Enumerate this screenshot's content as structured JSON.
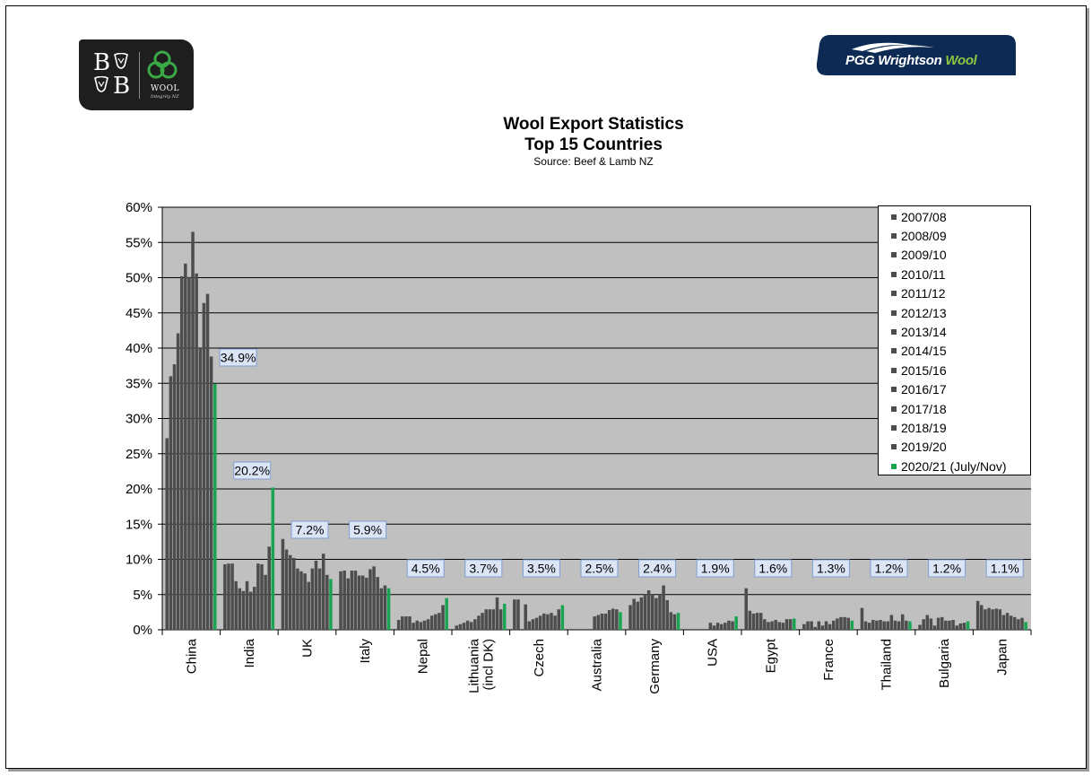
{
  "chart_data": {
    "type": "bar",
    "title": "Wool Export Statistics",
    "subtitle": "Top 15 Countries",
    "source": "Source: Beef & Lamb NZ",
    "ylim": [
      0,
      60
    ],
    "yticks": [
      "0%",
      "5%",
      "10%",
      "15%",
      "20%",
      "25%",
      "30%",
      "35%",
      "40%",
      "45%",
      "50%",
      "55%",
      "60%"
    ],
    "grid": true,
    "legend_position": "top-right",
    "categories": [
      "China",
      "India",
      "UK",
      "Italy",
      "Nepal",
      "Lithuania\n(incl DK)",
      "Czech",
      "Australia",
      "Germany",
      "USA",
      "Egypt",
      "France",
      "Thailand",
      "Bulgaria",
      "Japan"
    ],
    "series": [
      {
        "name": "2007/08",
        "color": "#4d4d4d",
        "values": [
          27.2,
          9.3,
          12.9,
          8.3,
          1.4,
          0.6,
          4.3,
          0,
          3.5,
          0,
          5.9,
          0.8,
          3.1,
          0.7,
          4.1
        ]
      },
      {
        "name": "2008/09",
        "color": "#4d4d4d",
        "values": [
          36.0,
          9.4,
          11.4,
          8.4,
          1.9,
          0.8,
          4.3,
          0,
          4.4,
          0,
          2.7,
          1.2,
          1.2,
          1.5,
          3.5
        ]
      },
      {
        "name": "2009/10",
        "color": "#4d4d4d",
        "values": [
          37.7,
          9.4,
          10.6,
          7.3,
          1.9,
          1.0,
          0,
          0,
          4.0,
          0,
          2.3,
          1.2,
          1.0,
          2.1,
          2.9
        ]
      },
      {
        "name": "2010/11",
        "color": "#4d4d4d",
        "values": [
          42.1,
          6.9,
          10.2,
          8.4,
          1.9,
          1.3,
          3.6,
          0,
          4.6,
          0,
          2.4,
          0.4,
          1.4,
          1.6,
          3.1
        ]
      },
      {
        "name": "2011/12",
        "color": "#4d4d4d",
        "values": [
          50.2,
          5.9,
          8.7,
          8.4,
          1.0,
          1.1,
          1.2,
          0,
          5.0,
          0,
          2.4,
          1.2,
          1.3,
          0.6,
          2.9
        ]
      },
      {
        "name": "2012/13",
        "color": "#4d4d4d",
        "values": [
          52.0,
          5.5,
          8.3,
          7.7,
          1.3,
          1.5,
          1.5,
          0,
          5.6,
          0,
          1.5,
          0.6,
          1.4,
          1.7,
          3.0
        ]
      },
      {
        "name": "2013/14",
        "color": "#4d4d4d",
        "values": [
          50.1,
          6.9,
          8.0,
          7.7,
          1.1,
          2.0,
          1.7,
          1.9,
          5.1,
          1.0,
          1.1,
          1.2,
          1.2,
          1.8,
          2.9
        ]
      },
      {
        "name": "2014/15",
        "color": "#4d4d4d",
        "values": [
          56.5,
          5.4,
          6.8,
          7.4,
          1.3,
          2.4,
          2.0,
          2.1,
          4.5,
          0.6,
          1.2,
          0.8,
          1.2,
          1.3,
          2.1
        ]
      },
      {
        "name": "2015/16",
        "color": "#4d4d4d",
        "values": [
          50.6,
          6.1,
          8.7,
          8.6,
          1.5,
          2.9,
          2.3,
          2.3,
          5.0,
          1.0,
          1.4,
          1.3,
          2.1,
          1.3,
          2.4
        ]
      },
      {
        "name": "2016/17",
        "color": "#4d4d4d",
        "values": [
          40.0,
          9.4,
          9.8,
          9.0,
          2.0,
          2.9,
          2.2,
          2.3,
          6.3,
          0.8,
          1.1,
          1.6,
          1.3,
          1.4,
          2.0
        ]
      },
      {
        "name": "2017/18",
        "color": "#4d4d4d",
        "values": [
          46.4,
          9.3,
          8.7,
          7.5,
          2.2,
          2.9,
          2.4,
          2.8,
          4.2,
          1.0,
          1.0,
          1.8,
          1.2,
          0.6,
          1.8
        ]
      },
      {
        "name": "2018/19",
        "color": "#4d4d4d",
        "values": [
          47.7,
          7.8,
          10.8,
          5.9,
          2.4,
          4.6,
          2.0,
          3.0,
          2.5,
          1.3,
          1.5,
          1.8,
          2.2,
          0.9,
          1.5
        ]
      },
      {
        "name": "2019/20",
        "color": "#4d4d4d",
        "values": [
          38.8,
          11.8,
          7.8,
          6.3,
          3.5,
          2.9,
          2.9,
          2.9,
          2.2,
          1.2,
          1.5,
          1.7,
          1.3,
          1.0,
          1.7
        ]
      },
      {
        "name": "2020/21 (July/Nov)",
        "color": "#1aa352",
        "values": [
          34.9,
          20.2,
          7.2,
          5.9,
          4.5,
          3.7,
          3.5,
          2.5,
          2.4,
          1.9,
          1.6,
          1.3,
          1.2,
          1.2,
          1.1
        ]
      }
    ],
    "data_labels": [
      "34.9%",
      "20.2%",
      "7.2%",
      "5.9%",
      "4.5%",
      "3.7%",
      "3.5%",
      "2.5%",
      "2.4%",
      "1.9%",
      "1.6%",
      "1.3%",
      "1.2%",
      "1.2%",
      "1.1%"
    ]
  },
  "logos": {
    "left_letters": "B B",
    "left_wool": "WOOL",
    "left_tagline": "Integrity NZ",
    "right_brand_main": "PGG Wrightson",
    "right_brand_accent": "Wool"
  },
  "colors": {
    "plot_background": "#c0c0c0",
    "bar_default": "#4d4d4d",
    "bar_current": "#1aa352",
    "label_box_fill": "#dbe5f5",
    "label_box_border": "#7f9fd0",
    "logo_dark": "#1e1e1e",
    "logo_navy": "#0d2a55",
    "brand_green": "#8dc63f"
  }
}
